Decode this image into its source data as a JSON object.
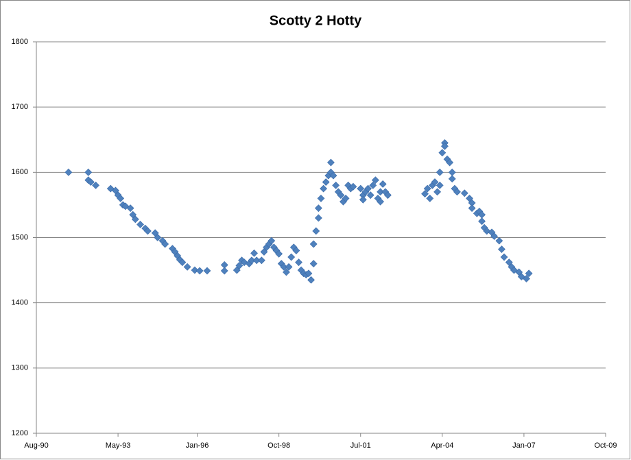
{
  "chart_data": {
    "type": "scatter",
    "title": "Scotty 2 Hotty",
    "color": "#4f81bd",
    "grid": true,
    "xlim": [
      "1990-08",
      "2009-10"
    ],
    "xticks": [
      {
        "value": "1990-08",
        "label": "Aug-90"
      },
      {
        "value": "1993-05",
        "label": "May-93"
      },
      {
        "value": "1996-01",
        "label": "Jan-96"
      },
      {
        "value": "1998-10",
        "label": "Oct-98"
      },
      {
        "value": "2001-07",
        "label": "Jul-01"
      },
      {
        "value": "2004-04",
        "label": "Apr-04"
      },
      {
        "value": "2007-01",
        "label": "Jan-07"
      },
      {
        "value": "2009-10",
        "label": "Oct-09"
      }
    ],
    "ylim": [
      1200,
      1800
    ],
    "yticks": [
      1200,
      1300,
      1400,
      1500,
      1600,
      1700,
      1800
    ],
    "x": [
      "1991-09",
      "1992-05",
      "1992-05",
      "1992-06",
      "1992-08",
      "1993-02",
      "1993-04",
      "1993-05",
      "1993-06",
      "1993-07",
      "1993-08",
      "1993-10",
      "1993-11",
      "1993-12",
      "1994-02",
      "1994-04",
      "1994-05",
      "1994-08",
      "1994-09",
      "1994-11",
      "1994-12",
      "1995-03",
      "1995-04",
      "1995-05",
      "1995-06",
      "1995-07",
      "1995-09",
      "1995-12",
      "1996-02",
      "1996-05",
      "1996-12",
      "1996-12",
      "1997-05",
      "1997-06",
      "1997-07",
      "1997-08",
      "1997-10",
      "1997-11",
      "1997-12",
      "1998-01",
      "1998-03",
      "1998-04",
      "1998-05",
      "1998-06",
      "1998-07",
      "1998-08",
      "1998-09",
      "1998-10",
      "1998-11",
      "1998-12",
      "1999-01",
      "1999-02",
      "1999-03",
      "1999-04",
      "1999-05",
      "1999-06",
      "1999-07",
      "1999-08",
      "1999-09",
      "1999-10",
      "1999-11",
      "1999-12",
      "1999-12",
      "2000-01",
      "2000-02",
      "2000-02",
      "2000-03",
      "2000-04",
      "2000-05",
      "2000-06",
      "2000-07",
      "2000-07",
      "2000-08",
      "2000-09",
      "2000-10",
      "2000-11",
      "2000-12",
      "2001-01",
      "2001-02",
      "2001-03",
      "2001-04",
      "2001-07",
      "2001-08",
      "2001-08",
      "2001-09",
      "2001-10",
      "2001-11",
      "2001-12",
      "2002-01",
      "2002-02",
      "2002-03",
      "2002-03",
      "2002-04",
      "2002-05",
      "2002-06",
      "2003-09",
      "2003-10",
      "2003-11",
      "2003-12",
      "2004-01",
      "2004-02",
      "2004-03",
      "2004-03",
      "2004-04",
      "2004-05",
      "2004-05",
      "2004-06",
      "2004-07",
      "2004-08",
      "2004-08",
      "2004-09",
      "2004-10",
      "2005-01",
      "2005-03",
      "2005-04",
      "2005-04",
      "2005-06",
      "2005-07",
      "2005-08",
      "2005-08",
      "2005-09",
      "2005-10",
      "2005-12",
      "2006-01",
      "2006-03",
      "2006-04",
      "2006-05",
      "2006-07",
      "2006-08",
      "2006-09",
      "2006-11",
      "2006-12",
      "2007-02",
      "2007-03"
    ],
    "values": [
      1600,
      1600,
      1588,
      1585,
      1580,
      1575,
      1572,
      1565,
      1560,
      1550,
      1548,
      1545,
      1535,
      1528,
      1520,
      1514,
      1510,
      1507,
      1500,
      1495,
      1490,
      1483,
      1478,
      1472,
      1466,
      1462,
      1455,
      1450,
      1449,
      1449,
      1458,
      1449,
      1450,
      1457,
      1465,
      1462,
      1460,
      1465,
      1476,
      1465,
      1465,
      1478,
      1485,
      1490,
      1495,
      1485,
      1480,
      1475,
      1460,
      1455,
      1447,
      1455,
      1470,
      1485,
      1480,
      1462,
      1450,
      1445,
      1443,
      1445,
      1435,
      1460,
      1490,
      1510,
      1530,
      1545,
      1560,
      1575,
      1585,
      1595,
      1615,
      1600,
      1595,
      1580,
      1570,
      1565,
      1555,
      1560,
      1580,
      1575,
      1578,
      1575,
      1565,
      1558,
      1570,
      1575,
      1565,
      1580,
      1588,
      1560,
      1555,
      1570,
      1582,
      1570,
      1565,
      1567,
      1575,
      1560,
      1580,
      1585,
      1570,
      1580,
      1600,
      1630,
      1645,
      1640,
      1620,
      1615,
      1600,
      1590,
      1575,
      1570,
      1568,
      1560,
      1553,
      1545,
      1537,
      1540,
      1535,
      1525,
      1515,
      1510,
      1508,
      1502,
      1495,
      1482,
      1470,
      1462,
      1455,
      1450,
      1447,
      1440,
      1437,
      1445
    ]
  }
}
